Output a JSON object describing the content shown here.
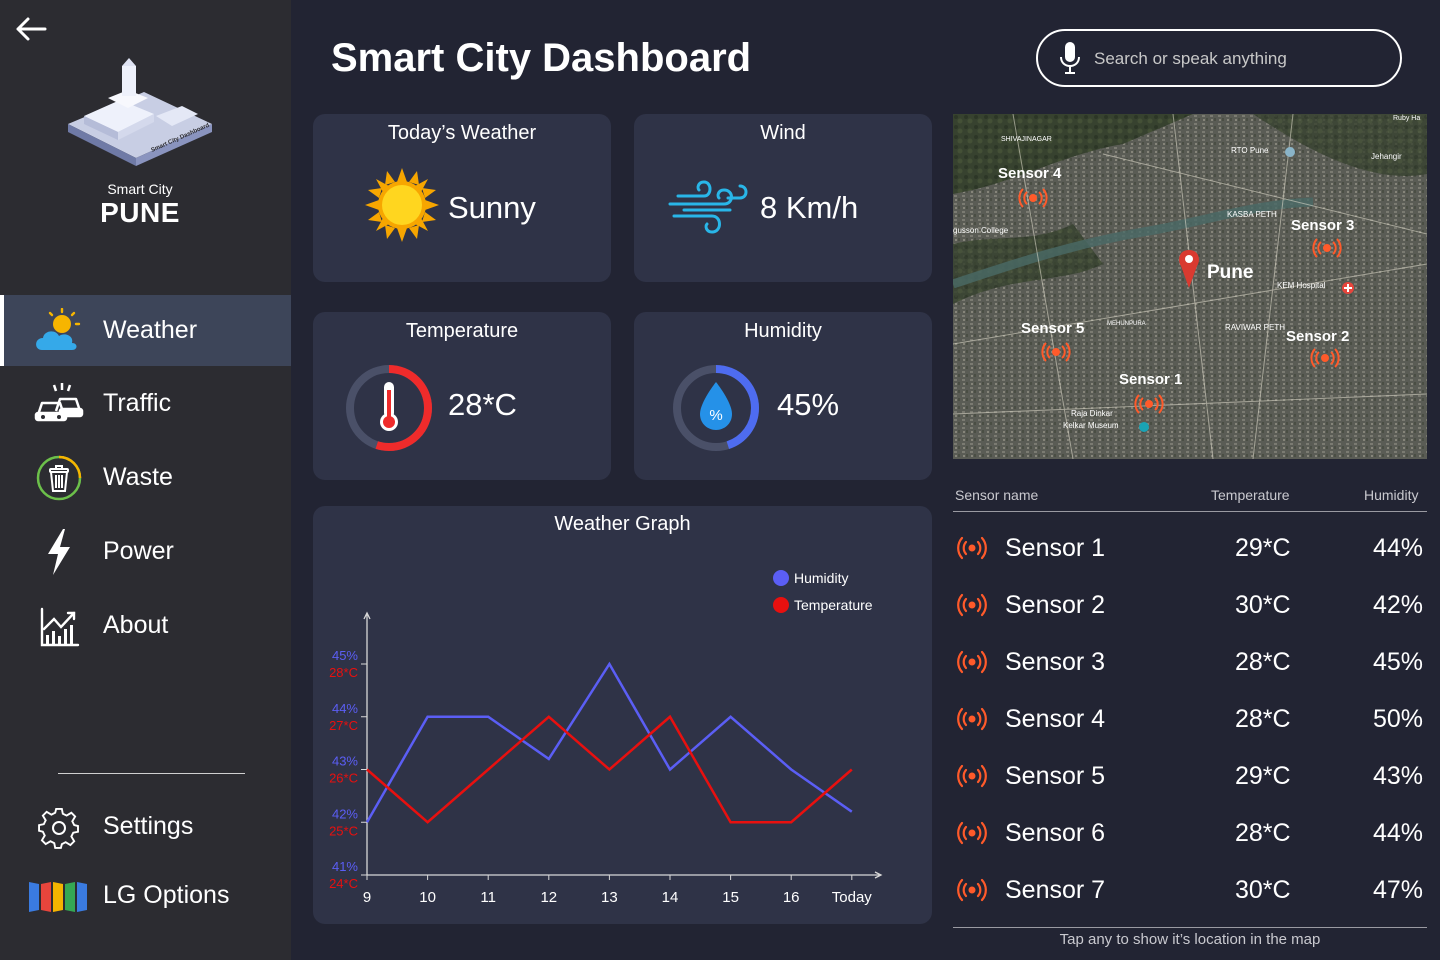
{
  "sidebar": {
    "brand_sub": "Smart City",
    "brand_main": "PUNE",
    "logo_text": "Smart City Dashboard",
    "nav": [
      {
        "label": "Weather",
        "icon": "weather-icon",
        "active": true
      },
      {
        "label": "Traffic",
        "icon": "traffic-icon"
      },
      {
        "label": "Waste",
        "icon": "waste-icon"
      },
      {
        "label": "Power",
        "icon": "power-icon"
      },
      {
        "label": "About",
        "icon": "about-icon"
      }
    ],
    "bottom": [
      {
        "label": "Settings",
        "icon": "gear-icon"
      },
      {
        "label": "LG Options",
        "icon": "lg-options-icon"
      }
    ]
  },
  "header": {
    "title": "Smart City Dashboard",
    "search_placeholder": "Search or speak anything"
  },
  "cards": {
    "weather": {
      "title": "Today’s Weather",
      "value": "Sunny"
    },
    "wind": {
      "title": "Wind",
      "value": "8 Km/h"
    },
    "temperature": {
      "title": "Temperature",
      "value": "28*C",
      "gauge_fraction": 0.55
    },
    "humidity": {
      "title": "Humidity",
      "value": "45%",
      "gauge_fraction": 0.45,
      "drop_symbol": "%"
    }
  },
  "chart_data": {
    "type": "line",
    "title": "Weather Graph",
    "categories": [
      "9",
      "10",
      "11",
      "12",
      "13",
      "14",
      "15",
      "16",
      "Today"
    ],
    "y_ticks_humidity": [
      "41%",
      "42%",
      "43%",
      "44%",
      "45%"
    ],
    "y_ticks_temperature": [
      "24*C",
      "25*C",
      "26*C",
      "27*C",
      "28*C"
    ],
    "series": [
      {
        "name": "Humidity",
        "color": "#5b5ef5",
        "values": [
          42.0,
          44.0,
          44.0,
          43.2,
          45.0,
          43.0,
          44.0,
          43.0,
          42.2
        ],
        "axis_min": 41,
        "axis_max": 45
      },
      {
        "name": "Temperature",
        "color": "#e8100f",
        "values": [
          26.0,
          25.0,
          26.0,
          27.0,
          26.0,
          27.0,
          25.0,
          25.0,
          26.0
        ],
        "axis_min": 24,
        "axis_max": 28
      }
    ],
    "legend_position": "top-right"
  },
  "map": {
    "city_label": "Pune",
    "sensors": [
      "Sensor 4",
      "Sensor 3",
      "Sensor 5",
      "Sensor 2",
      "Sensor 1"
    ],
    "places": [
      "SHIVAJINAGAR",
      "RTO Pune",
      "Jehangir",
      "KASBA PETH",
      "gusson College",
      "KEM Hospital",
      "MEHUNPURA",
      "RAVIWAR PETH",
      "Raja Dinkar",
      "Kelkar Museum",
      "Ruby Ha"
    ]
  },
  "table": {
    "headers": {
      "name": "Sensor name",
      "temperature": "Temperature",
      "humidity": "Humidity"
    },
    "rows": [
      {
        "name": "Sensor 1",
        "temperature": "29*C",
        "humidity": "44%"
      },
      {
        "name": "Sensor 2",
        "temperature": "30*C",
        "humidity": "42%"
      },
      {
        "name": "Sensor 3",
        "temperature": "28*C",
        "humidity": "45%"
      },
      {
        "name": "Sensor 4",
        "temperature": "28*C",
        "humidity": "50%"
      },
      {
        "name": "Sensor 5",
        "temperature": "29*C",
        "humidity": "43%"
      },
      {
        "name": "Sensor 6",
        "temperature": "28*C",
        "humidity": "44%"
      },
      {
        "name": "Sensor 7",
        "temperature": "30*C",
        "humidity": "47%"
      }
    ],
    "footnote": "Tap any to show it’s location in the map"
  },
  "colors": {
    "background": "#222433",
    "sidebar": "#2c2c31",
    "card": "#2f3347",
    "active_nav": "#3d4559",
    "humidity": "#5b5ef5",
    "temperature": "#e8100f",
    "sensor_signal": "#ff5a2a"
  }
}
